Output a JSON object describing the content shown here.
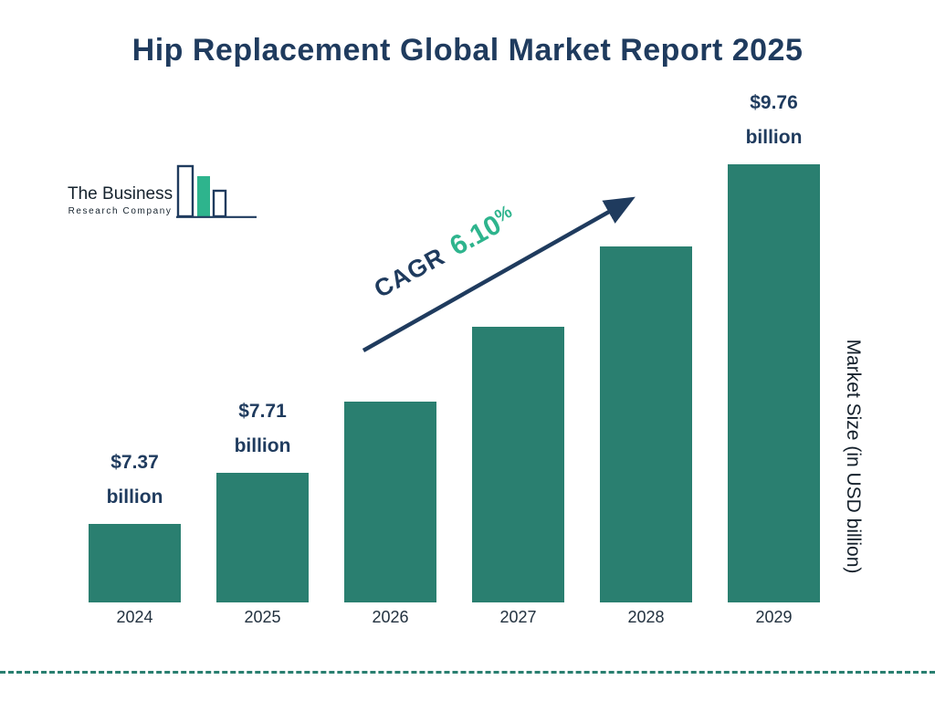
{
  "title": "Hip Replacement Global Market Report 2025",
  "logo": {
    "line1": "The Business",
    "line2": "Research Company"
  },
  "cagr": {
    "label": "CAGR",
    "value": "6.10",
    "percent": "%"
  },
  "y_axis_label": "Market Size (in USD billion)",
  "colors": {
    "navy": "#1f3b5e",
    "bar": "#2a7f70",
    "green": "#2eb48d",
    "text_dark": "#22313f"
  },
  "chart_data": {
    "type": "bar",
    "title": "Hip Replacement Global Market Report 2025",
    "categories": [
      "2024",
      "2025",
      "2026",
      "2027",
      "2028",
      "2029"
    ],
    "values": [
      7.37,
      7.71,
      8.18,
      8.68,
      9.21,
      9.76
    ],
    "labeled_bars": {
      "2024": [
        "$7.37",
        "billion"
      ],
      "2025": [
        "$7.71",
        "billion"
      ],
      "2029": [
        "$9.76",
        "billion"
      ]
    },
    "xlabel": "",
    "ylabel": "Market Size (in USD billion)",
    "ylim": [
      6.85,
      10.0
    ],
    "grid": false,
    "legend": false,
    "bar_color": "#2a7f70",
    "annotation": "CAGR 6.10%"
  }
}
